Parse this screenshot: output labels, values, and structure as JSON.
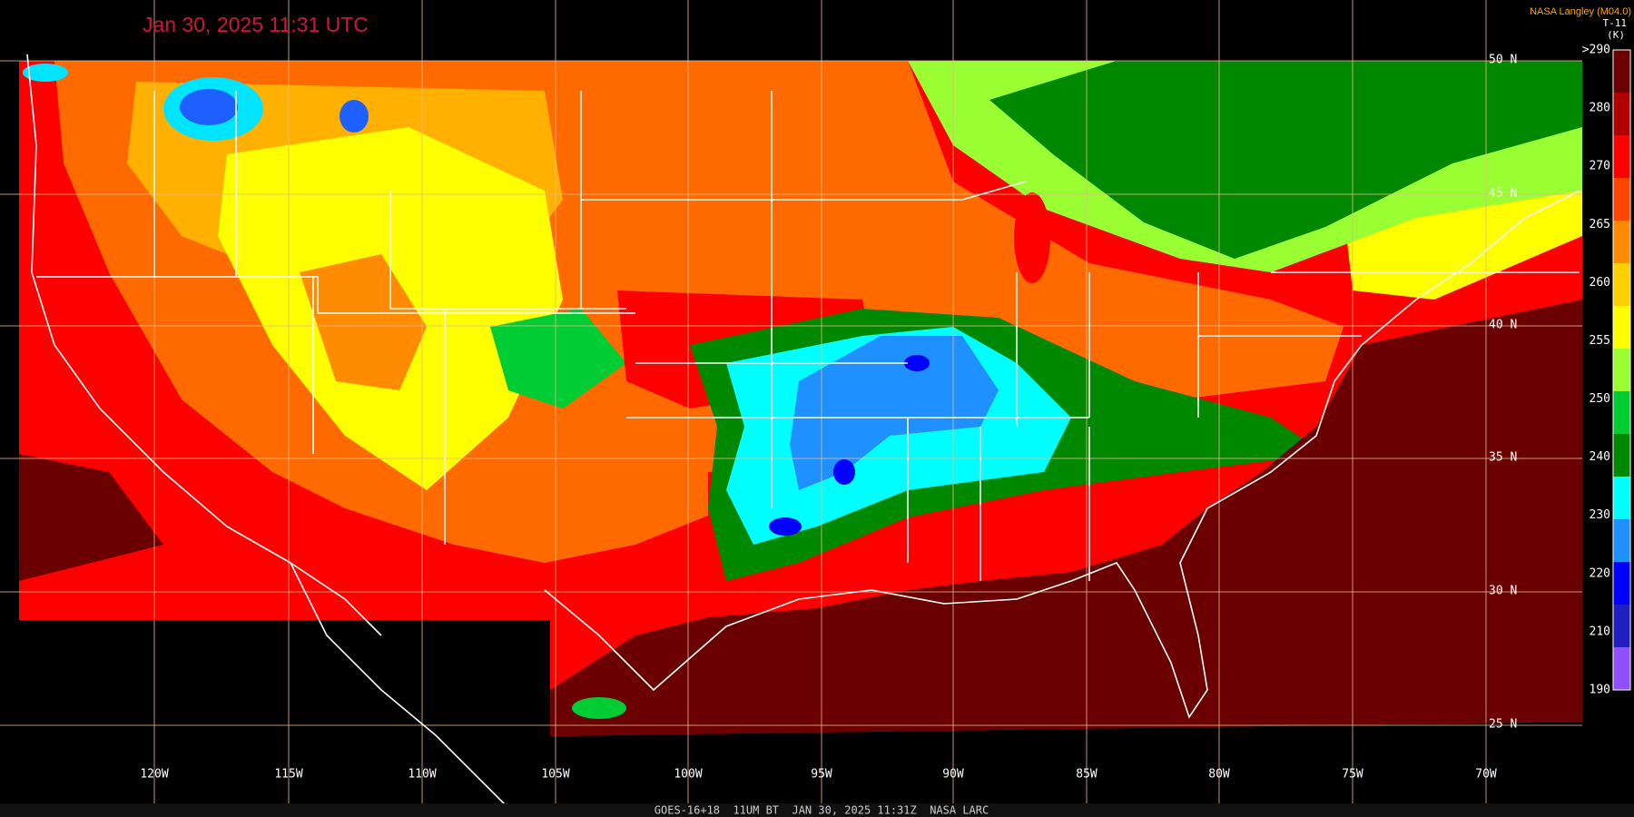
{
  "header": {
    "timestamp": "Jan 30, 2025 11:31 UTC",
    "credit": "NASA Langley (M04.0)",
    "product": "T-11",
    "unit": "(K)"
  },
  "colorbar": {
    "labels": [
      ">290",
      "280",
      "270",
      "265",
      "260",
      "255",
      "250",
      "240",
      "230",
      "220",
      "210",
      "190"
    ]
  },
  "longitudes": [
    "120W",
    "115W",
    "110W",
    "105W",
    "100W",
    "95W",
    "90W",
    "85W",
    "80W",
    "75W",
    "70W"
  ],
  "latitudes": [
    "50 N",
    "45 N",
    "40 N",
    "35 N",
    "30 N",
    "25 N"
  ],
  "footer": "GOES-16+18  11UM BT  JAN 30, 2025 11:31Z  NASA LARC"
}
